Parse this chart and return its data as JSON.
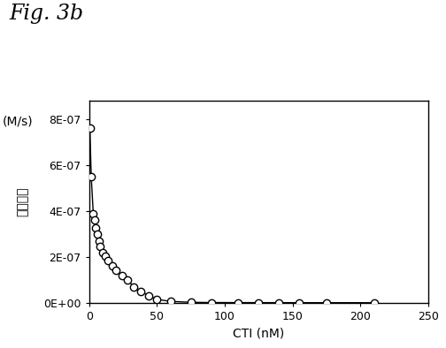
{
  "title": "Fig. 3b",
  "xlabel": "CTI (nM)",
  "ylabel_top": "(M/s)",
  "ylabel_mid": "残留活性",
  "xlim": [
    0,
    250
  ],
  "ylim": [
    0,
    8.8e-07
  ],
  "yticks": [
    0,
    2e-07,
    4e-07,
    6e-07,
    8e-07
  ],
  "ytick_labels": [
    "0E+00",
    "2E-07",
    "4E-07",
    "6E-07",
    "8E-07"
  ],
  "xticks": [
    0,
    50,
    100,
    150,
    200,
    250
  ],
  "xtick_labels": [
    "0",
    "50",
    "100",
    "150",
    "200",
    "250"
  ],
  "x_data": [
    0.5,
    1.5,
    3,
    4,
    5,
    6,
    7,
    8,
    10,
    12,
    14,
    17,
    20,
    24,
    28,
    33,
    38,
    44,
    50,
    60,
    75,
    90,
    110,
    125,
    140,
    155,
    175,
    210
  ],
  "y_data": [
    7.6e-07,
    5.5e-07,
    3.9e-07,
    3.6e-07,
    3.25e-07,
    3e-07,
    2.7e-07,
    2.45e-07,
    2.2e-07,
    2.05e-07,
    1.85e-07,
    1.6e-07,
    1.4e-07,
    1.2e-07,
    1e-07,
    7e-08,
    5e-08,
    3e-08,
    1.5e-08,
    6e-09,
    2e-09,
    1e-09,
    8e-10,
    6e-10,
    5e-10,
    4e-10,
    3e-10,
    2e-10
  ],
  "line_color": "#000000",
  "marker_facecolor": "#ffffff",
  "marker_edgecolor": "#000000",
  "marker_size": 6,
  "line_width": 1.0,
  "background_color": "#ffffff",
  "title_fontsize": 17,
  "axis_label_fontsize": 10,
  "tick_fontsize": 9,
  "ylabel_fontsize": 10
}
